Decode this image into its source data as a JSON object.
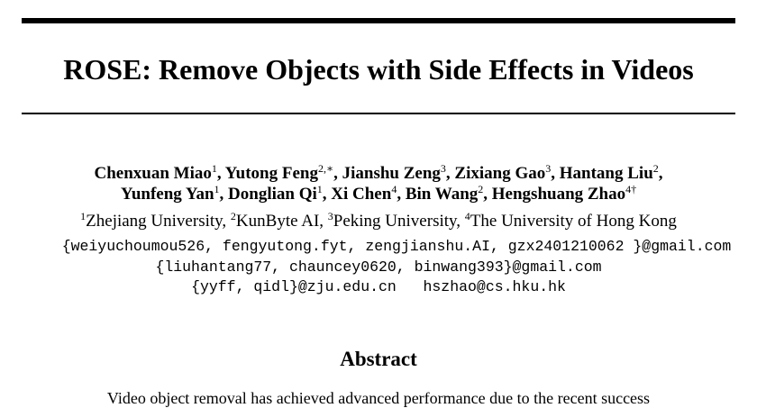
{
  "title": "ROSE: Remove Objects with Side Effects in Videos",
  "authors_line1": [
    {
      "name": "Chenxuan Miao",
      "mark": "1",
      "sep": ", "
    },
    {
      "name": "Yutong Feng",
      "mark": "2,∗",
      "sep": ", "
    },
    {
      "name": "Jianshu Zeng",
      "mark": "3",
      "sep": ", "
    },
    {
      "name": "Zixiang Gao",
      "mark": "3",
      "sep": ", "
    },
    {
      "name": "Hantang Liu",
      "mark": "2",
      "sep": ","
    }
  ],
  "authors_line2": [
    {
      "name": "Yunfeng Yan",
      "mark": "1",
      "sep": ", "
    },
    {
      "name": "Donglian Qi",
      "mark": "1",
      "sep": ", "
    },
    {
      "name": "Xi Chen",
      "mark": "4",
      "sep": ", "
    },
    {
      "name": "Bin Wang",
      "mark": "2",
      "sep": ", "
    },
    {
      "name": "Hengshuang Zhao",
      "mark": "4†",
      "sep": ""
    }
  ],
  "affiliations": [
    {
      "mark": "1",
      "name": "Zhejiang University",
      "sep": ", "
    },
    {
      "mark": "2",
      "name": "KunByte AI",
      "sep": ", "
    },
    {
      "mark": "3",
      "name": "Peking University",
      "sep": ", "
    },
    {
      "mark": "4",
      "name": "The University of Hong Kong",
      "sep": ""
    }
  ],
  "emails": [
    "{weiyuchoumou526, fengyutong.fyt, zengjianshu.AI, gzx2401210062 }@gmail.com",
    "{liuhantang77, chauncey0620, binwang393}@gmail.com",
    "{yyff, qidl}@zju.edu.cn   hszhao@cs.hku.hk"
  ],
  "abstract_heading": "Abstract",
  "abstract_first_line": "Video object removal has achieved advanced performance due to the recent success"
}
